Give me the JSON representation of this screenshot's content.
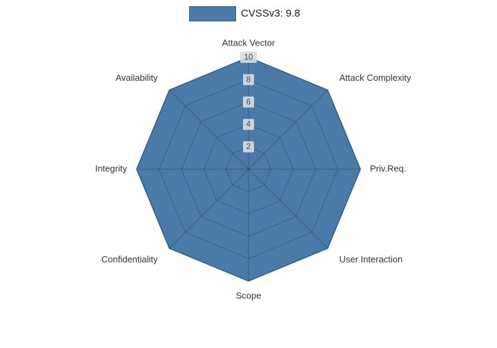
{
  "legend": {
    "label": "CVSSv3: 9.8"
  },
  "colors": {
    "fill": "#4a7aa8",
    "edge": "#2e5f8d",
    "grid": "#2f3a45",
    "tick_box_bg": "#d6dbe0",
    "tick_text": "#4a4a4a",
    "label_text": "#333333",
    "background": "#ffffff"
  },
  "chart_data": {
    "type": "radar",
    "title": "CVSSv3: 9.8",
    "categories": [
      "Attack Vector",
      "Attack Complexity",
      "Priv.Req.",
      "User Interaction",
      "Scope",
      "Confidentiality",
      "Integrity",
      "Availability"
    ],
    "series": [
      {
        "name": "CVSSv3: 9.8",
        "values": [
          10,
          10,
          10,
          10,
          10,
          10,
          10,
          10
        ]
      }
    ],
    "ticks": [
      2,
      4,
      6,
      8,
      10
    ],
    "rlim": [
      0,
      10
    ],
    "grid": true,
    "legend_position": "top-center"
  }
}
